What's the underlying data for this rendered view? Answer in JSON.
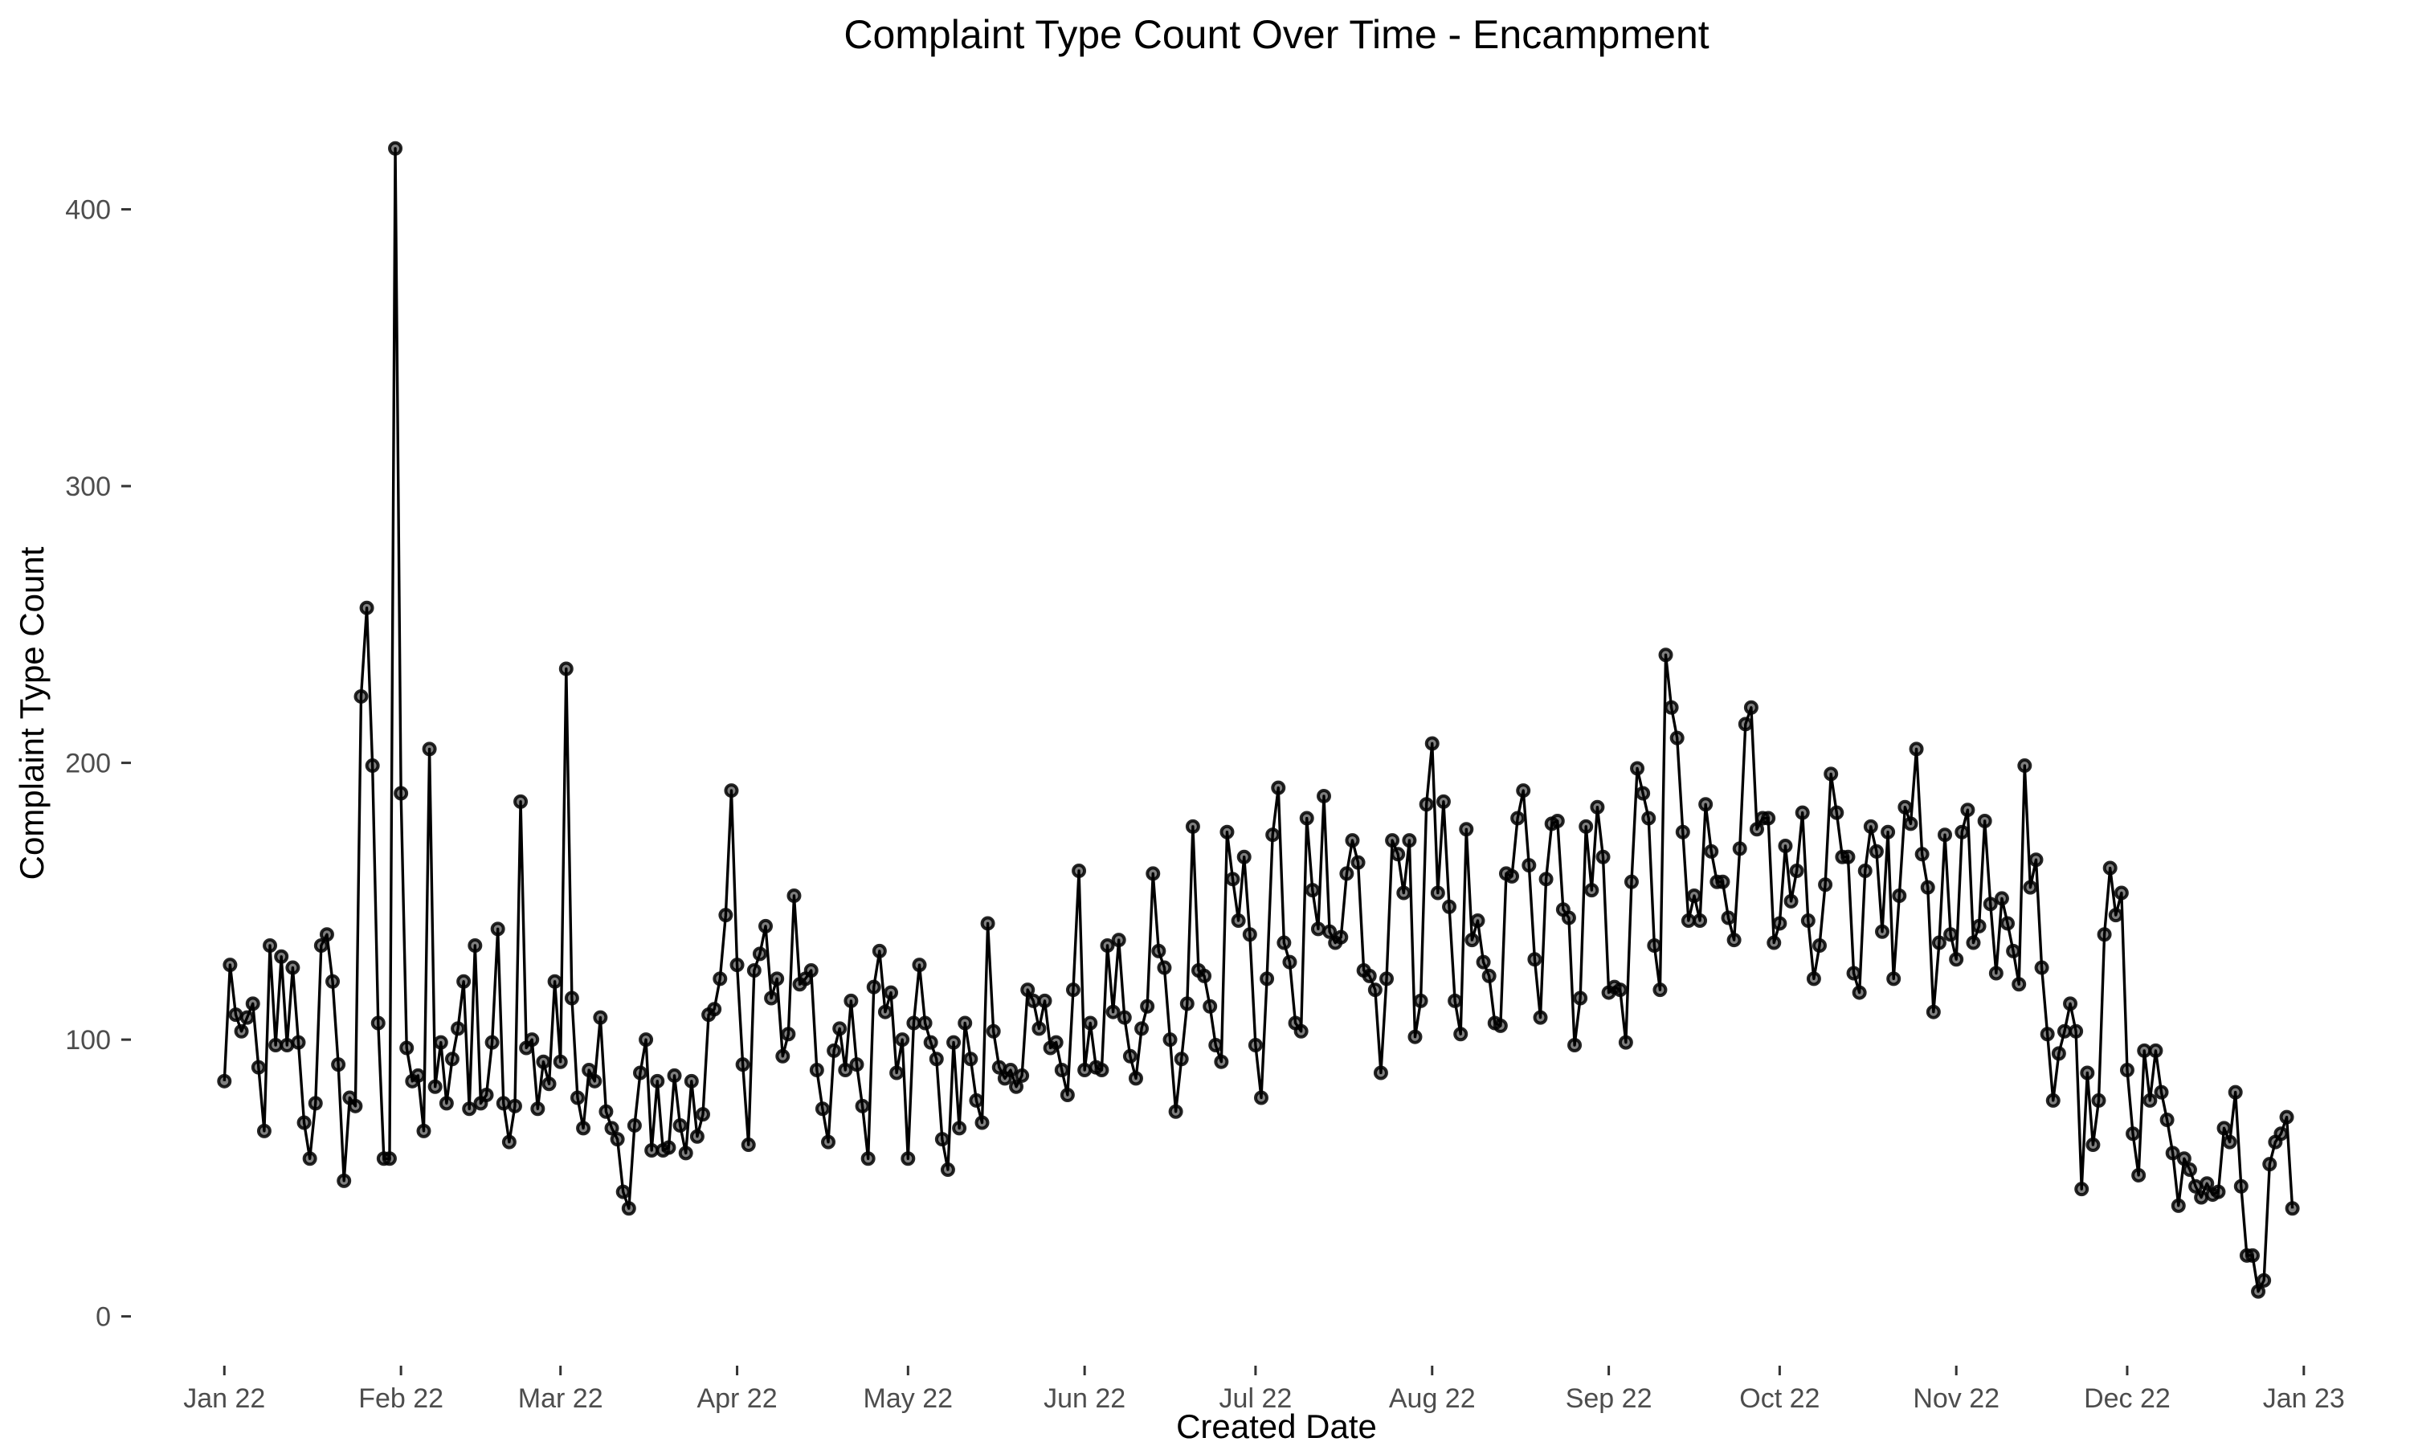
{
  "chart_data": {
    "type": "line",
    "title": "Complaint Type Count Over Time - Encampment",
    "xlabel": "Created Date",
    "ylabel": "Complaint Type Count",
    "x_start": "2022-01-01",
    "xlim": [
      "2021-12-18",
      "2023-01-14"
    ],
    "ylim": [
      -12,
      435
    ],
    "yticks": [
      0,
      100,
      200,
      300,
      400
    ],
    "xticks": [
      {
        "date": "2022-01-01",
        "label": "Jan 22"
      },
      {
        "date": "2022-02-01",
        "label": "Feb 22"
      },
      {
        "date": "2022-03-01",
        "label": "Mar 22"
      },
      {
        "date": "2022-04-01",
        "label": "Apr 22"
      },
      {
        "date": "2022-05-01",
        "label": "May 22"
      },
      {
        "date": "2022-06-01",
        "label": "Jun 22"
      },
      {
        "date": "2022-07-01",
        "label": "Jul 22"
      },
      {
        "date": "2022-08-01",
        "label": "Aug 22"
      },
      {
        "date": "2022-09-01",
        "label": "Sep 22"
      },
      {
        "date": "2022-10-01",
        "label": "Oct 22"
      },
      {
        "date": "2022-11-01",
        "label": "Nov 22"
      },
      {
        "date": "2022-12-01",
        "label": "Dec 22"
      },
      {
        "date": "2023-01-01",
        "label": "Jan 23"
      }
    ],
    "grid": false,
    "legend": "none",
    "colors": {
      "line": "#000000",
      "point": "#000000"
    },
    "values": [
      85,
      127,
      109,
      103,
      108,
      113,
      90,
      67,
      134,
      98,
      130,
      98,
      126,
      99,
      70,
      57,
      77,
      134,
      138,
      121,
      91,
      49,
      79,
      76,
      224,
      256,
      199,
      106,
      57,
      57,
      422,
      189,
      97,
      85,
      87,
      67,
      205,
      83,
      99,
      77,
      93,
      104,
      121,
      75,
      134,
      77,
      80,
      99,
      140,
      77,
      63,
      76,
      186,
      97,
      100,
      75,
      92,
      84,
      121,
      92,
      234,
      115,
      79,
      68,
      89,
      85,
      108,
      74,
      68,
      64,
      45,
      39,
      69,
      88,
      100,
      60,
      85,
      60,
      61,
      87,
      69,
      59,
      85,
      65,
      73,
      109,
      111,
      122,
      145,
      190,
      127,
      91,
      62,
      125,
      131,
      141,
      115,
      122,
      94,
      102,
      152,
      120,
      122,
      125,
      89,
      75,
      63,
      96,
      104,
      89,
      114,
      91,
      76,
      57,
      119,
      132,
      110,
      117,
      88,
      100,
      57,
      106,
      127,
      106,
      99,
      93,
      64,
      53,
      99,
      68,
      106,
      93,
      78,
      70,
      142,
      103,
      90,
      86,
      89,
      83,
      87,
      118,
      114,
      104,
      114,
      97,
      99,
      89,
      80,
      118,
      161,
      89,
      106,
      90,
      89,
      134,
      110,
      136,
      108,
      94,
      86,
      104,
      112,
      160,
      132,
      126,
      100,
      74,
      93,
      113,
      177,
      125,
      123,
      112,
      98,
      92,
      175,
      158,
      143,
      166,
      138,
      98,
      79,
      122,
      174,
      191,
      135,
      128,
      106,
      103,
      180,
      154,
      140,
      188,
      139,
      135,
      137,
      160,
      172,
      164,
      125,
      123,
      118,
      88,
      122,
      172,
      167,
      153,
      172,
      101,
      114,
      185,
      207,
      153,
      186,
      148,
      114,
      102,
      176,
      136,
      143,
      128,
      123,
      106,
      105,
      160,
      159,
      180,
      190,
      163,
      129,
      108,
      158,
      178,
      179,
      147,
      144,
      98,
      115,
      177,
      154,
      184,
      166,
      117,
      119,
      118,
      99,
      157,
      198,
      189,
      180,
      134,
      118,
      239,
      220,
      209,
      175,
      143,
      152,
      143,
      185,
      168,
      157,
      157,
      144,
      136,
      169,
      214,
      220,
      176,
      180,
      180,
      135,
      142,
      170,
      150,
      161,
      182,
      143,
      122,
      134,
      156,
      196,
      182,
      166,
      166,
      124,
      117,
      161,
      177,
      168,
      139,
      175,
      122,
      152,
      184,
      178,
      205,
      167,
      155,
      110,
      135,
      174,
      138,
      129,
      175,
      183,
      135,
      141,
      179,
      149,
      124,
      151,
      142,
      132,
      120,
      199,
      155,
      165,
      126,
      102,
      78,
      95,
      103,
      113,
      103,
      46,
      88,
      62,
      78,
      138,
      162,
      145,
      153,
      89,
      66,
      51,
      96,
      78,
      96,
      81,
      71,
      59,
      40,
      57,
      53,
      47,
      43,
      48,
      44,
      45,
      68,
      63,
      81,
      47,
      22,
      22,
      9,
      13,
      55,
      63,
      66,
      72,
      39
    ]
  }
}
